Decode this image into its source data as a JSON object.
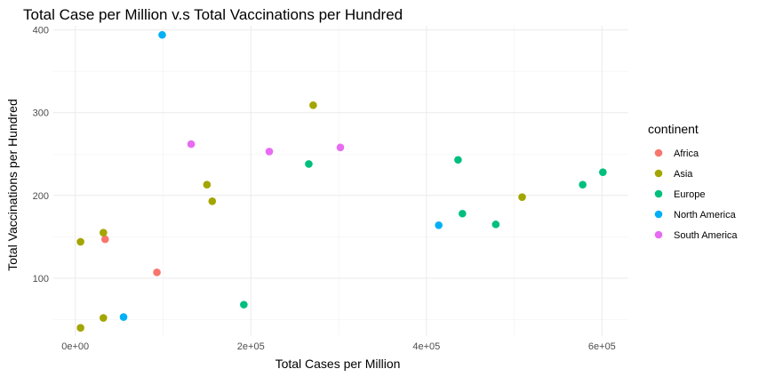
{
  "chart_data": {
    "type": "scatter",
    "title": "Total Case per Million v.s Total Vaccinations per Hundred",
    "xlabel": "Total Cases per Million",
    "ylabel": "Total Vaccinations per Hundred",
    "xlim": [
      -25000,
      630000
    ],
    "ylim": [
      30,
      405
    ],
    "x_ticks": [
      0,
      200000,
      400000,
      600000
    ],
    "x_tick_labels": [
      "0e+00",
      "2e+05",
      "4e+05",
      "6e+05"
    ],
    "y_ticks": [
      100,
      200,
      300,
      400
    ],
    "y_tick_labels": [
      "100",
      "200",
      "300",
      "400"
    ],
    "grid": true,
    "legend": {
      "title": "continent",
      "position": "right"
    },
    "series": [
      {
        "name": "Africa",
        "color": "#F8766D",
        "points": [
          [
            34000,
            147
          ],
          [
            93000,
            107
          ]
        ]
      },
      {
        "name": "Asia",
        "color": "#A3A500",
        "points": [
          [
            6000,
            144
          ],
          [
            32000,
            155
          ],
          [
            6000,
            40
          ],
          [
            32000,
            52
          ],
          [
            150000,
            213
          ],
          [
            156000,
            193
          ],
          [
            271000,
            309
          ],
          [
            509000,
            198
          ]
        ]
      },
      {
        "name": "Europe",
        "color": "#00BF7D",
        "points": [
          [
            192000,
            68
          ],
          [
            266000,
            238
          ],
          [
            436000,
            243
          ],
          [
            441000,
            178
          ],
          [
            479000,
            165
          ],
          [
            578000,
            213
          ],
          [
            601000,
            228
          ]
        ]
      },
      {
        "name": "North America",
        "color": "#00B0F6",
        "points": [
          [
            99000,
            394
          ],
          [
            55000,
            53
          ],
          [
            414000,
            164
          ]
        ]
      },
      {
        "name": "South America",
        "color": "#E76BF3",
        "points": [
          [
            132000,
            262
          ],
          [
            221000,
            253
          ],
          [
            302000,
            258
          ]
        ]
      }
    ]
  }
}
